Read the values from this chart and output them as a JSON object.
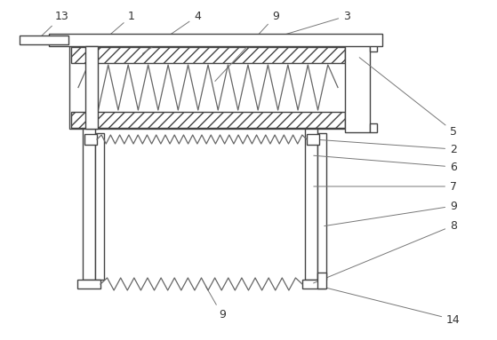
{
  "bg_color": "#ffffff",
  "line_color": "#444444",
  "figsize": [
    5.59,
    3.83
  ],
  "dpi": 100,
  "font_size": 9,
  "label_color": "#333333",
  "arrow_color": "#777777"
}
